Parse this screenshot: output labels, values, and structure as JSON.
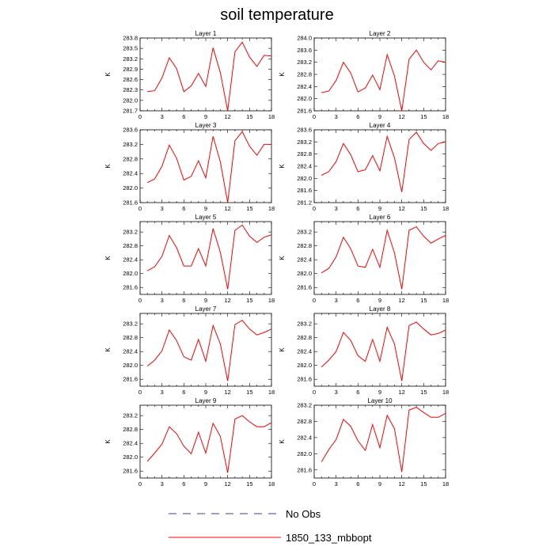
{
  "title": "soil temperature",
  "legend": [
    {
      "label": "No Obs",
      "color": "#3a3aa0",
      "dash": true
    },
    {
      "label": "1850_133_mbbopt",
      "color": "#ff0000",
      "dash": false
    }
  ],
  "chart_data": [
    {
      "type": "line",
      "title": "Layer 1",
      "ylabel": "K",
      "xlim": [
        0,
        18
      ],
      "xticks": [
        0,
        3,
        6,
        9,
        12,
        15,
        18
      ],
      "ylim": [
        281.7,
        283.8
      ],
      "yticks": [
        "281.7",
        "282.0",
        "282.3",
        "282.6",
        "282.9",
        "283.2",
        "283.5",
        "283.8"
      ],
      "x": [
        1,
        2,
        3,
        4,
        5,
        6,
        7,
        8,
        9,
        10,
        11,
        12,
        13,
        14,
        15,
        16,
        17,
        18
      ],
      "series": [
        {
          "name": "1850_133_mbbopt",
          "color": "#ff0000",
          "values": [
            282.25,
            282.28,
            282.65,
            283.23,
            282.92,
            282.25,
            282.42,
            282.78,
            282.4,
            283.52,
            282.8,
            281.7,
            283.4,
            283.68,
            283.25,
            282.98,
            283.3,
            283.28
          ]
        }
      ]
    },
    {
      "type": "line",
      "title": "Layer 2",
      "ylabel": "K",
      "xlim": [
        0,
        18
      ],
      "xticks": [
        0,
        3,
        6,
        9,
        12,
        15,
        18
      ],
      "ylim": [
        281.6,
        284.0
      ],
      "yticks": [
        "281.6",
        "282.0",
        "282.4",
        "282.8",
        "283.2",
        "283.6",
        "284.0"
      ],
      "x": [
        1,
        2,
        3,
        4,
        5,
        6,
        7,
        8,
        9,
        10,
        11,
        12,
        13,
        14,
        15,
        16,
        17,
        18
      ],
      "series": [
        {
          "name": "1850_133_mbbopt",
          "color": "#ff0000",
          "values": [
            282.2,
            282.25,
            282.6,
            283.2,
            282.85,
            282.22,
            282.35,
            282.78,
            282.3,
            283.45,
            282.75,
            281.6,
            283.3,
            283.6,
            283.2,
            282.95,
            283.25,
            283.2
          ]
        }
      ]
    },
    {
      "type": "line",
      "title": "Layer 3",
      "ylabel": "K",
      "xlim": [
        0,
        18
      ],
      "xticks": [
        0,
        3,
        6,
        9,
        12,
        15,
        18
      ],
      "ylim": [
        281.6,
        283.6
      ],
      "yticks": [
        "281.6",
        "282.0",
        "282.4",
        "282.8",
        "283.2",
        "283.6"
      ],
      "x": [
        1,
        2,
        3,
        4,
        5,
        6,
        7,
        8,
        9,
        10,
        11,
        12,
        13,
        14,
        15,
        16,
        17,
        18
      ],
      "series": [
        {
          "name": "1850_133_mbbopt",
          "color": "#ff0000",
          "values": [
            282.15,
            282.25,
            282.6,
            283.18,
            282.82,
            282.22,
            282.32,
            282.75,
            282.28,
            283.42,
            282.72,
            281.6,
            283.3,
            283.55,
            283.15,
            282.9,
            283.2,
            283.2
          ]
        }
      ]
    },
    {
      "type": "line",
      "title": "Layer 4",
      "ylabel": "K",
      "xlim": [
        0,
        18
      ],
      "xticks": [
        0,
        3,
        6,
        9,
        12,
        15,
        18
      ],
      "ylim": [
        281.2,
        283.6
      ],
      "yticks": [
        "281.2",
        "281.6",
        "282.0",
        "282.4",
        "282.8",
        "283.2",
        "283.6"
      ],
      "x": [
        1,
        2,
        3,
        4,
        5,
        6,
        7,
        8,
        9,
        10,
        11,
        12,
        13,
        14,
        15,
        16,
        17,
        18
      ],
      "series": [
        {
          "name": "1850_133_mbbopt",
          "color": "#ff0000",
          "values": [
            282.1,
            282.22,
            282.55,
            283.15,
            282.78,
            282.22,
            282.28,
            282.75,
            282.25,
            283.38,
            282.68,
            281.55,
            283.28,
            283.52,
            283.15,
            282.92,
            283.15,
            283.2
          ]
        }
      ]
    },
    {
      "type": "line",
      "title": "Layer 5",
      "ylabel": "K",
      "xlim": [
        0,
        18
      ],
      "xticks": [
        0,
        3,
        6,
        9,
        12,
        15,
        18
      ],
      "ylim": [
        281.4,
        283.5
      ],
      "yticks": [
        "281.6",
        "282.0",
        "282.4",
        "282.8",
        "283.2"
      ],
      "x": [
        1,
        2,
        3,
        4,
        5,
        6,
        7,
        8,
        9,
        10,
        11,
        12,
        13,
        14,
        15,
        16,
        17,
        18
      ],
      "series": [
        {
          "name": "1850_133_mbbopt",
          "color": "#ff0000",
          "values": [
            282.08,
            282.2,
            282.5,
            283.1,
            282.75,
            282.22,
            282.22,
            282.72,
            282.22,
            283.3,
            282.62,
            281.55,
            283.25,
            283.4,
            283.08,
            282.9,
            283.05,
            283.12
          ]
        }
      ]
    },
    {
      "type": "line",
      "title": "Layer 6",
      "ylabel": "K",
      "xlim": [
        0,
        18
      ],
      "xticks": [
        0,
        3,
        6,
        9,
        12,
        15,
        18
      ],
      "ylim": [
        281.4,
        283.5
      ],
      "yticks": [
        "281.6",
        "282.0",
        "282.4",
        "282.8",
        "283.2"
      ],
      "x": [
        1,
        2,
        3,
        4,
        5,
        6,
        7,
        8,
        9,
        10,
        11,
        12,
        13,
        14,
        15,
        16,
        17,
        18
      ],
      "series": [
        {
          "name": "1850_133_mbbopt",
          "color": "#ff0000",
          "values": [
            282.02,
            282.15,
            282.48,
            283.05,
            282.72,
            282.22,
            282.18,
            282.7,
            282.18,
            283.25,
            282.6,
            281.55,
            283.25,
            283.35,
            283.08,
            282.88,
            283.0,
            283.1
          ]
        }
      ]
    },
    {
      "type": "line",
      "title": "Layer 7",
      "ylabel": "K",
      "xlim": [
        0,
        18
      ],
      "xticks": [
        0,
        3,
        6,
        9,
        12,
        15,
        18
      ],
      "ylim": [
        281.4,
        283.5
      ],
      "yticks": [
        "281.6",
        "282.0",
        "282.4",
        "282.8",
        "283.2"
      ],
      "x": [
        1,
        2,
        3,
        4,
        5,
        6,
        7,
        8,
        9,
        10,
        11,
        12,
        13,
        14,
        15,
        16,
        17,
        18
      ],
      "series": [
        {
          "name": "1850_133_mbbopt",
          "color": "#ff0000",
          "values": [
            281.98,
            282.15,
            282.42,
            283.02,
            282.72,
            282.25,
            282.15,
            282.75,
            282.12,
            283.15,
            282.62,
            281.55,
            283.18,
            283.3,
            283.05,
            282.88,
            282.95,
            283.05
          ]
        }
      ]
    },
    {
      "type": "line",
      "title": "Layer 8",
      "ylabel": "K",
      "xlim": [
        0,
        18
      ],
      "xticks": [
        0,
        3,
        6,
        9,
        12,
        15,
        18
      ],
      "ylim": [
        281.4,
        283.5
      ],
      "yticks": [
        "281.6",
        "282.0",
        "282.4",
        "282.8",
        "283.2"
      ],
      "x": [
        1,
        2,
        3,
        4,
        5,
        6,
        7,
        8,
        9,
        10,
        11,
        12,
        13,
        14,
        15,
        16,
        17,
        18
      ],
      "series": [
        {
          "name": "1850_133_mbbopt",
          "color": "#ff0000",
          "values": [
            281.95,
            282.15,
            282.4,
            282.95,
            282.72,
            282.28,
            282.12,
            282.75,
            282.12,
            283.1,
            282.62,
            281.55,
            283.15,
            283.25,
            283.05,
            282.88,
            282.92,
            283.02
          ]
        }
      ]
    },
    {
      "type": "line",
      "title": "Layer 9",
      "ylabel": "K",
      "xlim": [
        0,
        18
      ],
      "xticks": [
        0,
        3,
        6,
        9,
        12,
        15,
        18
      ],
      "ylim": [
        281.4,
        283.5
      ],
      "yticks": [
        "281.6",
        "282.0",
        "282.4",
        "282.8",
        "283.2"
      ],
      "x": [
        1,
        2,
        3,
        4,
        5,
        6,
        7,
        8,
        9,
        10,
        11,
        12,
        13,
        14,
        15,
        16,
        17,
        18
      ],
      "series": [
        {
          "name": "1850_133_mbbopt",
          "color": "#ff0000",
          "values": [
            281.88,
            282.12,
            282.38,
            282.88,
            282.68,
            282.32,
            282.1,
            282.72,
            282.12,
            282.98,
            282.6,
            281.55,
            283.1,
            283.2,
            283.02,
            282.88,
            282.88,
            283.0
          ]
        }
      ]
    },
    {
      "type": "line",
      "title": "Layer 10",
      "ylabel": "K",
      "xlim": [
        0,
        18
      ],
      "xticks": [
        0,
        3,
        6,
        9,
        12,
        15,
        18
      ],
      "ylim": [
        281.4,
        283.2
      ],
      "yticks": [
        "281.6",
        "282.0",
        "282.4",
        "282.8",
        "283.2"
      ],
      "x": [
        1,
        2,
        3,
        4,
        5,
        6,
        7,
        8,
        9,
        10,
        11,
        12,
        13,
        14,
        15,
        16,
        17,
        18
      ],
      "series": [
        {
          "name": "1850_133_mbbopt",
          "color": "#ff0000",
          "values": [
            281.8,
            282.1,
            282.35,
            282.85,
            282.68,
            282.32,
            282.08,
            282.72,
            282.15,
            282.95,
            282.62,
            281.55,
            283.08,
            283.15,
            283.02,
            282.9,
            282.9,
            283.0
          ]
        }
      ]
    }
  ]
}
